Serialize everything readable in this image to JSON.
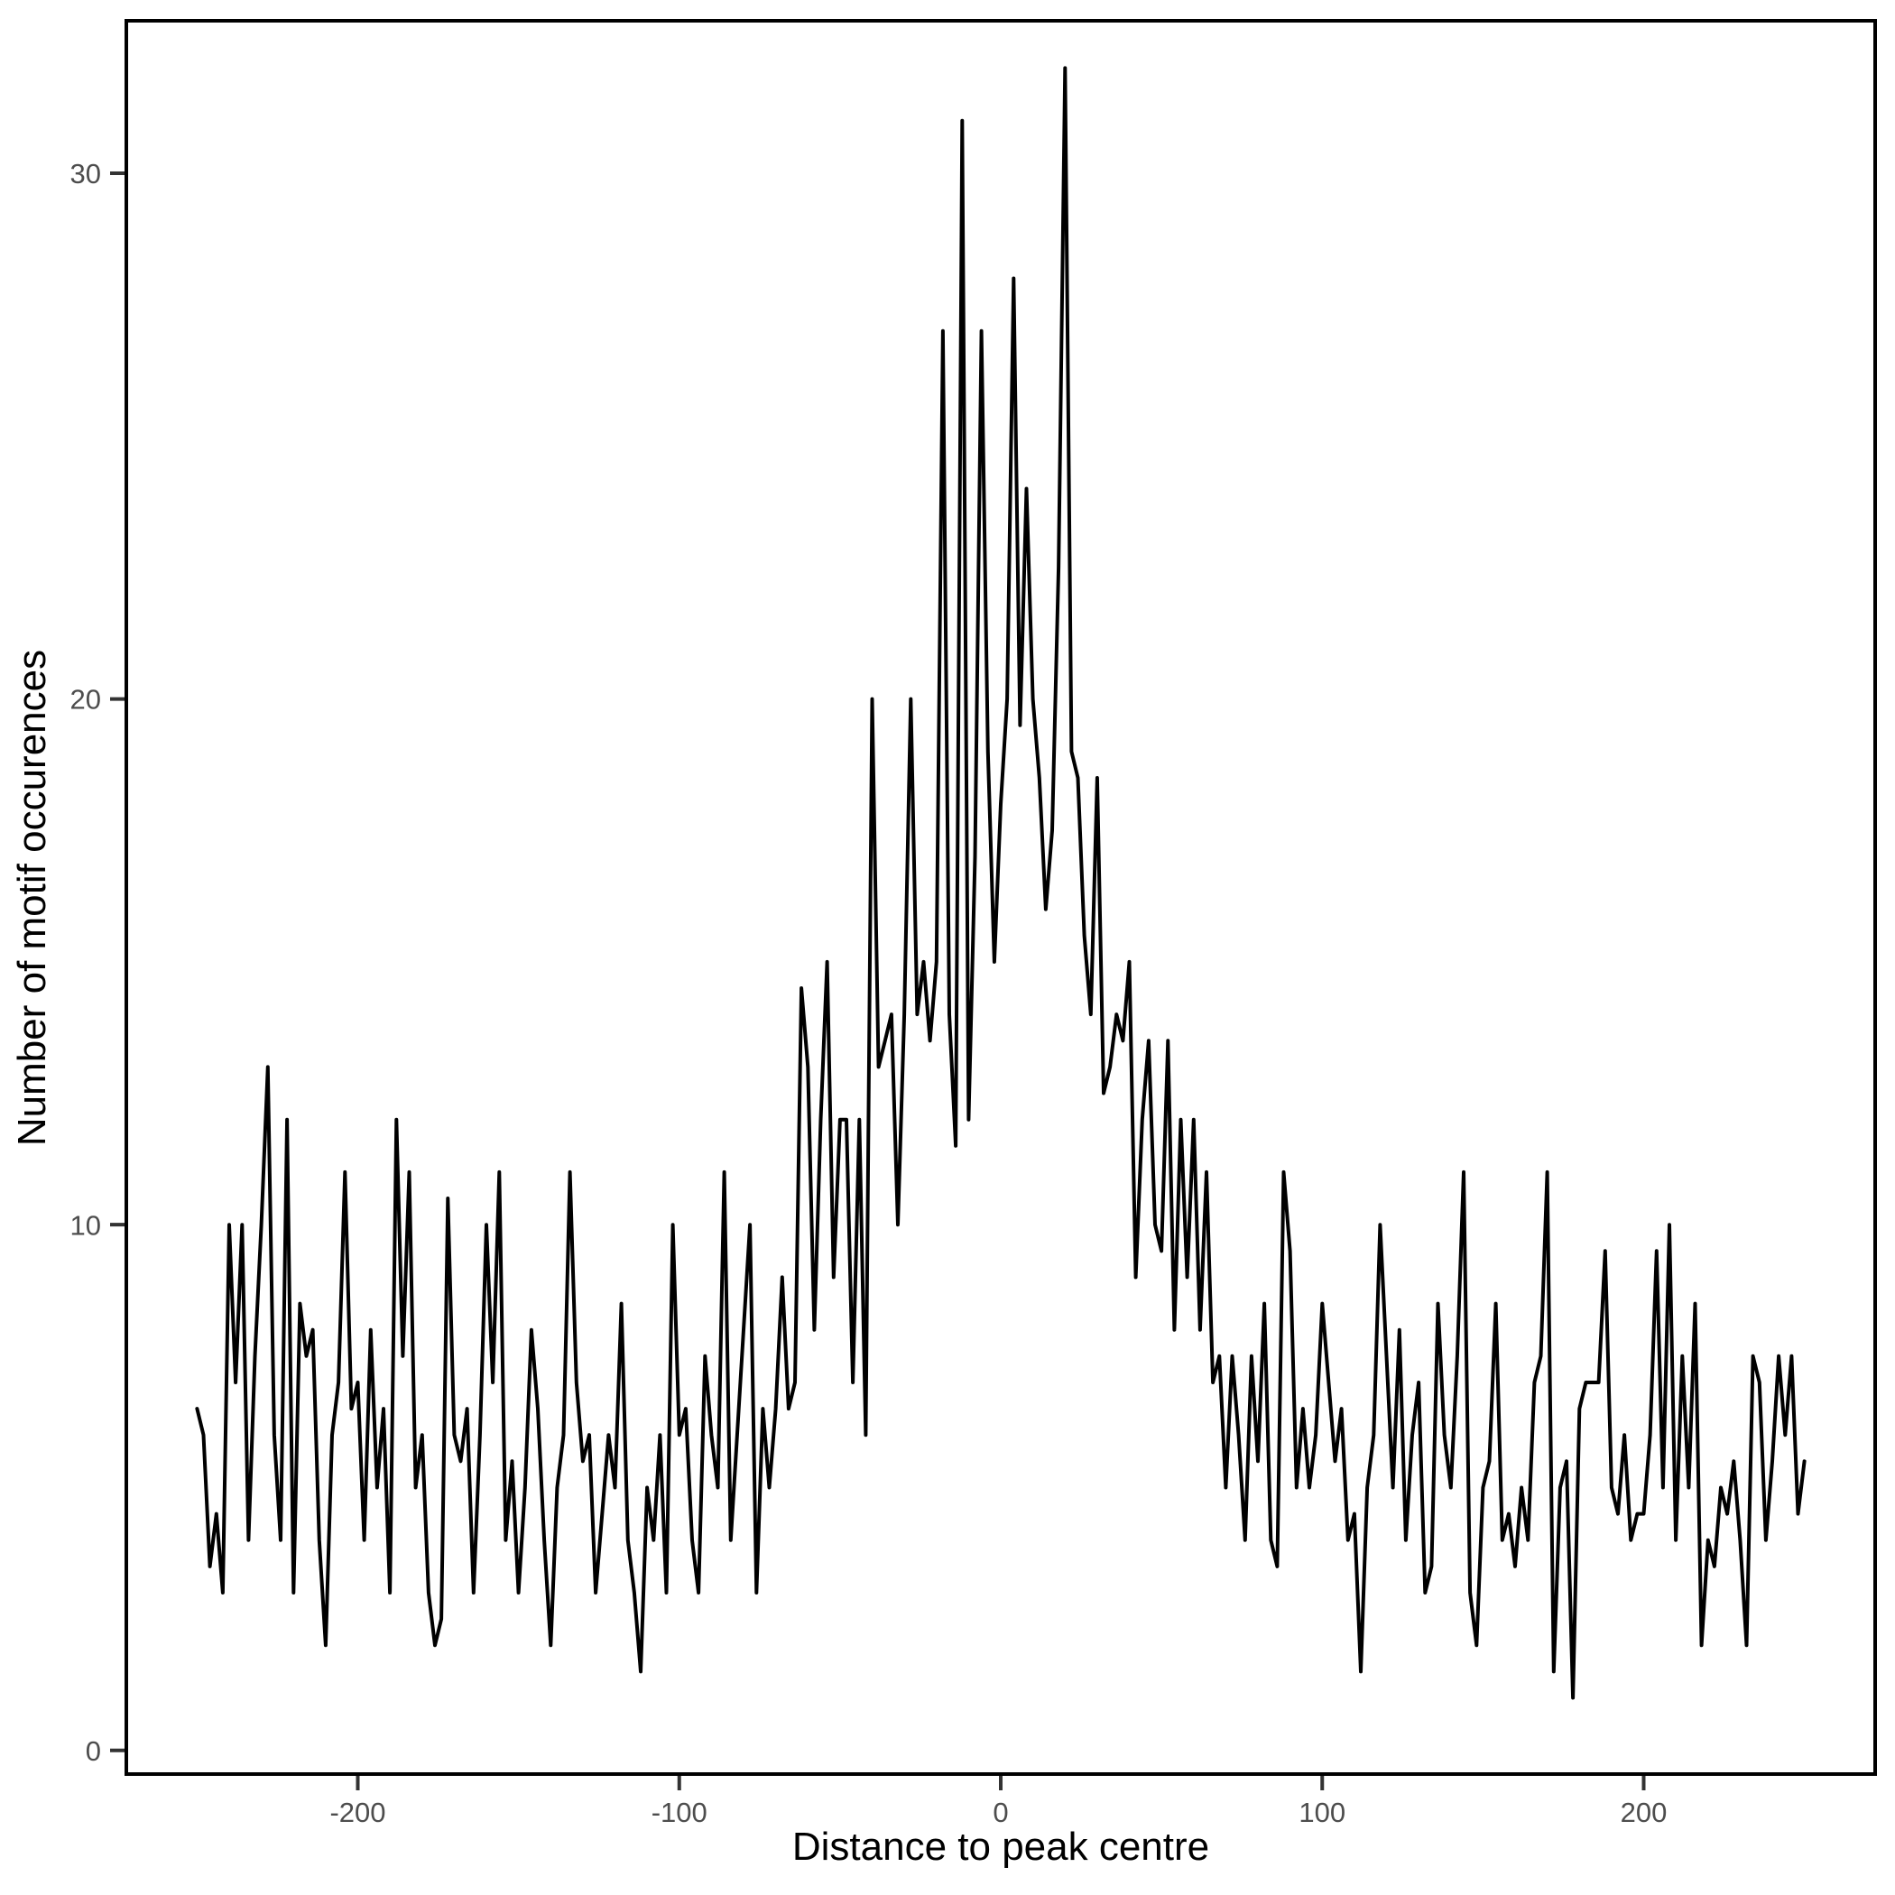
{
  "figure": {
    "background_color": "#FFFFFF",
    "panel_border_color": "#000000",
    "line_color": "#000000",
    "axis_text_color": "#4D4D4D",
    "axis_title_color": "#000000"
  },
  "chart_data": {
    "type": "line",
    "title": "",
    "xlabel": "Distance to peak centre",
    "ylabel": "Number of motif occurences",
    "x_tick_labels": [
      "-200",
      "-100",
      "0",
      "100",
      "200"
    ],
    "x_tick_values": [
      -200,
      -100,
      0,
      100,
      200
    ],
    "y_tick_labels": [
      "0",
      "10",
      "20",
      "30"
    ],
    "y_tick_values": [
      0,
      10,
      20,
      30
    ],
    "xlim": [
      -272,
      272
    ],
    "ylim": [
      -0.45,
      32.9
    ],
    "grid": false,
    "legend": false,
    "x_start": -250,
    "x_step": 2,
    "values": [
      6.5,
      6,
      3.5,
      4.5,
      3,
      10,
      7,
      10,
      4,
      7.5,
      10,
      13,
      6,
      4,
      12,
      3,
      8.5,
      7.5,
      8,
      4,
      2,
      6,
      7,
      11,
      6.5,
      7,
      4,
      8,
      5,
      6.5,
      3,
      12,
      7.5,
      11,
      5,
      6,
      3,
      2,
      2.5,
      10.5,
      6,
      5.5,
      6.5,
      3,
      6,
      10,
      7,
      11,
      4,
      5.5,
      3,
      5,
      8,
      6.5,
      4,
      2,
      5,
      6,
      11,
      7,
      5.5,
      6,
      3,
      4.5,
      6,
      5,
      8.5,
      4,
      3,
      1.5,
      5,
      4,
      6,
      3,
      10,
      6,
      6.5,
      4,
      3,
      7.5,
      6,
      5,
      11,
      4,
      6,
      8,
      10,
      3,
      6.5,
      5,
      6.5,
      9,
      6.5,
      7,
      14.5,
      13,
      8,
      12,
      15,
      9,
      12,
      12,
      7,
      12,
      6,
      20,
      13,
      13.5,
      14,
      10,
      14,
      20,
      14,
      15,
      13.5,
      15,
      27,
      14,
      11.5,
      31,
      12,
      17,
      27,
      19,
      15,
      18,
      20,
      28,
      19.5,
      24,
      20,
      18.5,
      16,
      17.5,
      22.5,
      32,
      19,
      18.5,
      15.5,
      14,
      18.5,
      12.5,
      13,
      14,
      13.5,
      15,
      9,
      12,
      13.5,
      10,
      9.5,
      13.5,
      8,
      12,
      9,
      12,
      8,
      11,
      7,
      7.5,
      5,
      7.5,
      6,
      4,
      7.5,
      5.5,
      8.5,
      4,
      3.5,
      11,
      9.5,
      5,
      6.5,
      5,
      6,
      8.5,
      7,
      5.5,
      6.5,
      4,
      4.5,
      1.5,
      5,
      6,
      10,
      7.5,
      5,
      8,
      4,
      6,
      7,
      3,
      3.5,
      8.5,
      6,
      5,
      7.5,
      11,
      3,
      2,
      5,
      5.5,
      8.5,
      4,
      4.5,
      3.5,
      5,
      4,
      7,
      7.5,
      11,
      1.5,
      5,
      5.5,
      1,
      6.5,
      7,
      7,
      7,
      9.5,
      5,
      4.5,
      6,
      4,
      4.5,
      4.5,
      6,
      9.5,
      5,
      10,
      4,
      7.5,
      5,
      8.5,
      2,
      4,
      3.5,
      5,
      4.5,
      5.5,
      4,
      2,
      7.5,
      7,
      4,
      5.5,
      7.5,
      6,
      7.5,
      4.5,
      5.5
    ]
  }
}
